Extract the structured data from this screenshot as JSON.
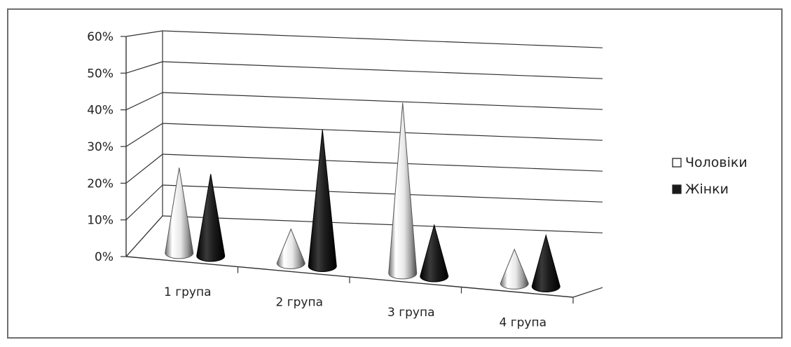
{
  "chart_data": {
    "type": "bar",
    "style": "3d-cone",
    "categories": [
      "1 група",
      "2 група",
      "3 група",
      "4 група"
    ],
    "series": [
      {
        "name": "Чоловіки",
        "values": [
          25,
          10,
          50,
          10
        ],
        "color": "#ffffff"
      },
      {
        "name": "Жінки",
        "values": [
          24,
          40,
          15,
          15
        ],
        "color": "#1a1a1a"
      }
    ],
    "yticks": [
      "0%",
      "10%",
      "20%",
      "30%",
      "40%",
      "50%",
      "60%"
    ],
    "ylim": [
      0,
      60
    ],
    "grid": true,
    "legend_position": "right"
  }
}
